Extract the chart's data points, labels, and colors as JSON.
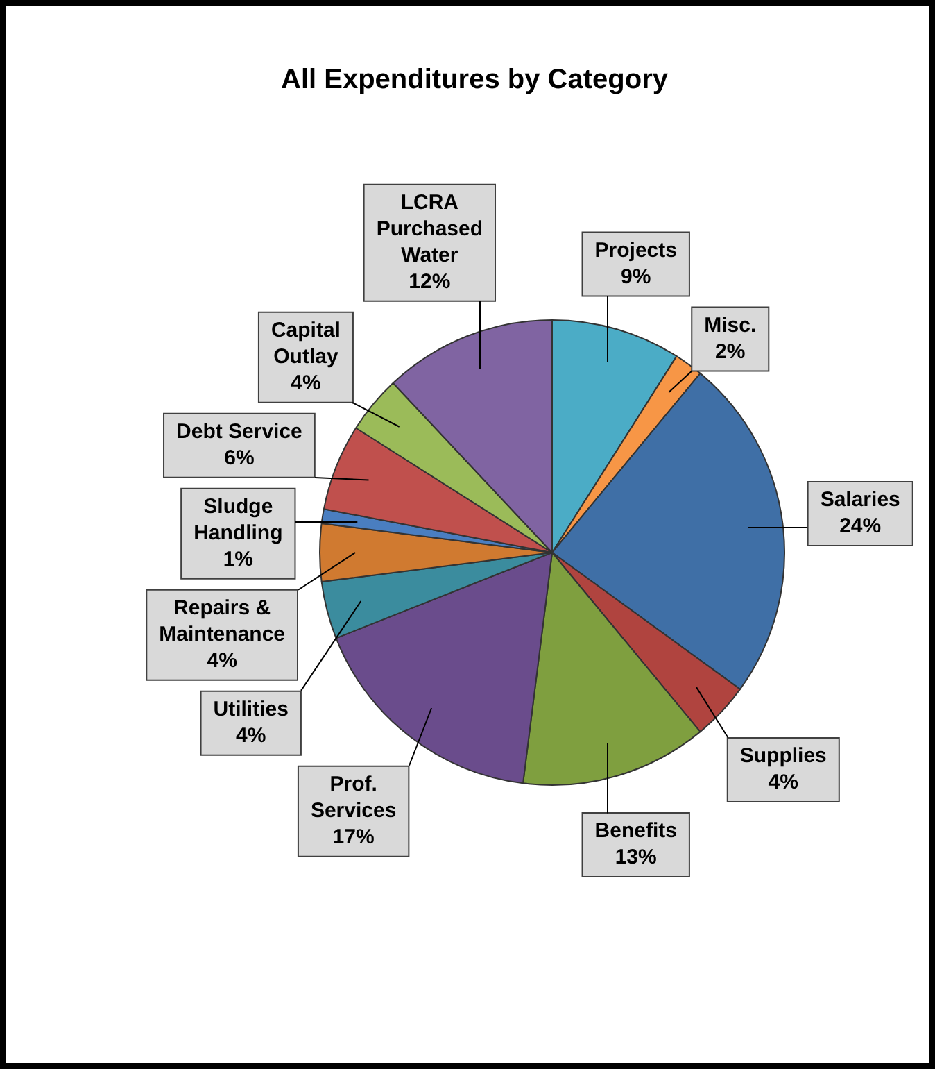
{
  "chart_data": {
    "type": "pie",
    "title": "All Expenditures by Category",
    "categories": [
      "Projects",
      "Misc.",
      "Salaries",
      "Supplies",
      "Benefits",
      "Prof. Services",
      "Utilities",
      "Repairs & Maintenance",
      "Sludge Handling",
      "Debt Service",
      "Capital Outlay",
      "LCRA Purchased Water"
    ],
    "values": [
      9,
      2,
      24,
      4,
      13,
      17,
      4,
      4,
      1,
      6,
      4,
      12
    ],
    "value_labels": [
      "9%",
      "2%",
      "24%",
      "4%",
      "13%",
      "17%",
      "4%",
      "4%",
      "1%",
      "6%",
      "4%",
      "12%"
    ],
    "colors": [
      "#4bacc6",
      "#f79646",
      "#3f6fa6",
      "#b0443f",
      "#7f9f3f",
      "#6a4c8c",
      "#3b8c9e",
      "#d07a30",
      "#4a7ec0",
      "#c0504d",
      "#9bbb59",
      "#8064a2"
    ],
    "legend": false
  }
}
